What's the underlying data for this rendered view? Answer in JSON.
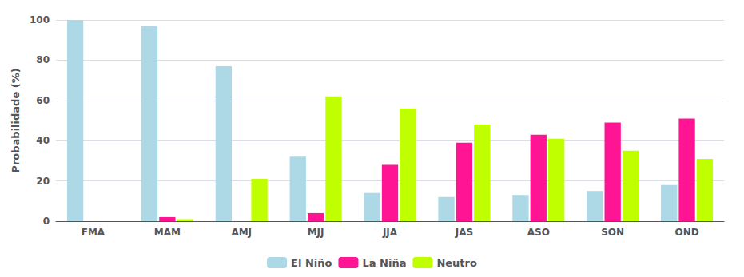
{
  "chart_data": {
    "type": "bar",
    "categories": [
      "FMA",
      "MAM",
      "AMJ",
      "MJJ",
      "JJA",
      "JAS",
      "ASO",
      "SON",
      "OND"
    ],
    "series": [
      {
        "name": "El Niño",
        "color": "#ADD8E6",
        "values": [
          100,
          97,
          77,
          32,
          14,
          12,
          13,
          15,
          18
        ]
      },
      {
        "name": "La Niña",
        "color": "#FF1493",
        "values": [
          0,
          2,
          0,
          4,
          28,
          39,
          43,
          49,
          51
        ]
      },
      {
        "name": "Neutro",
        "color": "#BFFF00",
        "values": [
          0,
          1,
          21,
          62,
          56,
          48,
          41,
          35,
          31
        ]
      }
    ],
    "ylabel": "Probabilidade (%)",
    "ylim": [
      0,
      100
    ],
    "yticks": [
      0,
      20,
      40,
      60,
      80,
      100
    ],
    "grid": true,
    "legend": "bottom"
  }
}
